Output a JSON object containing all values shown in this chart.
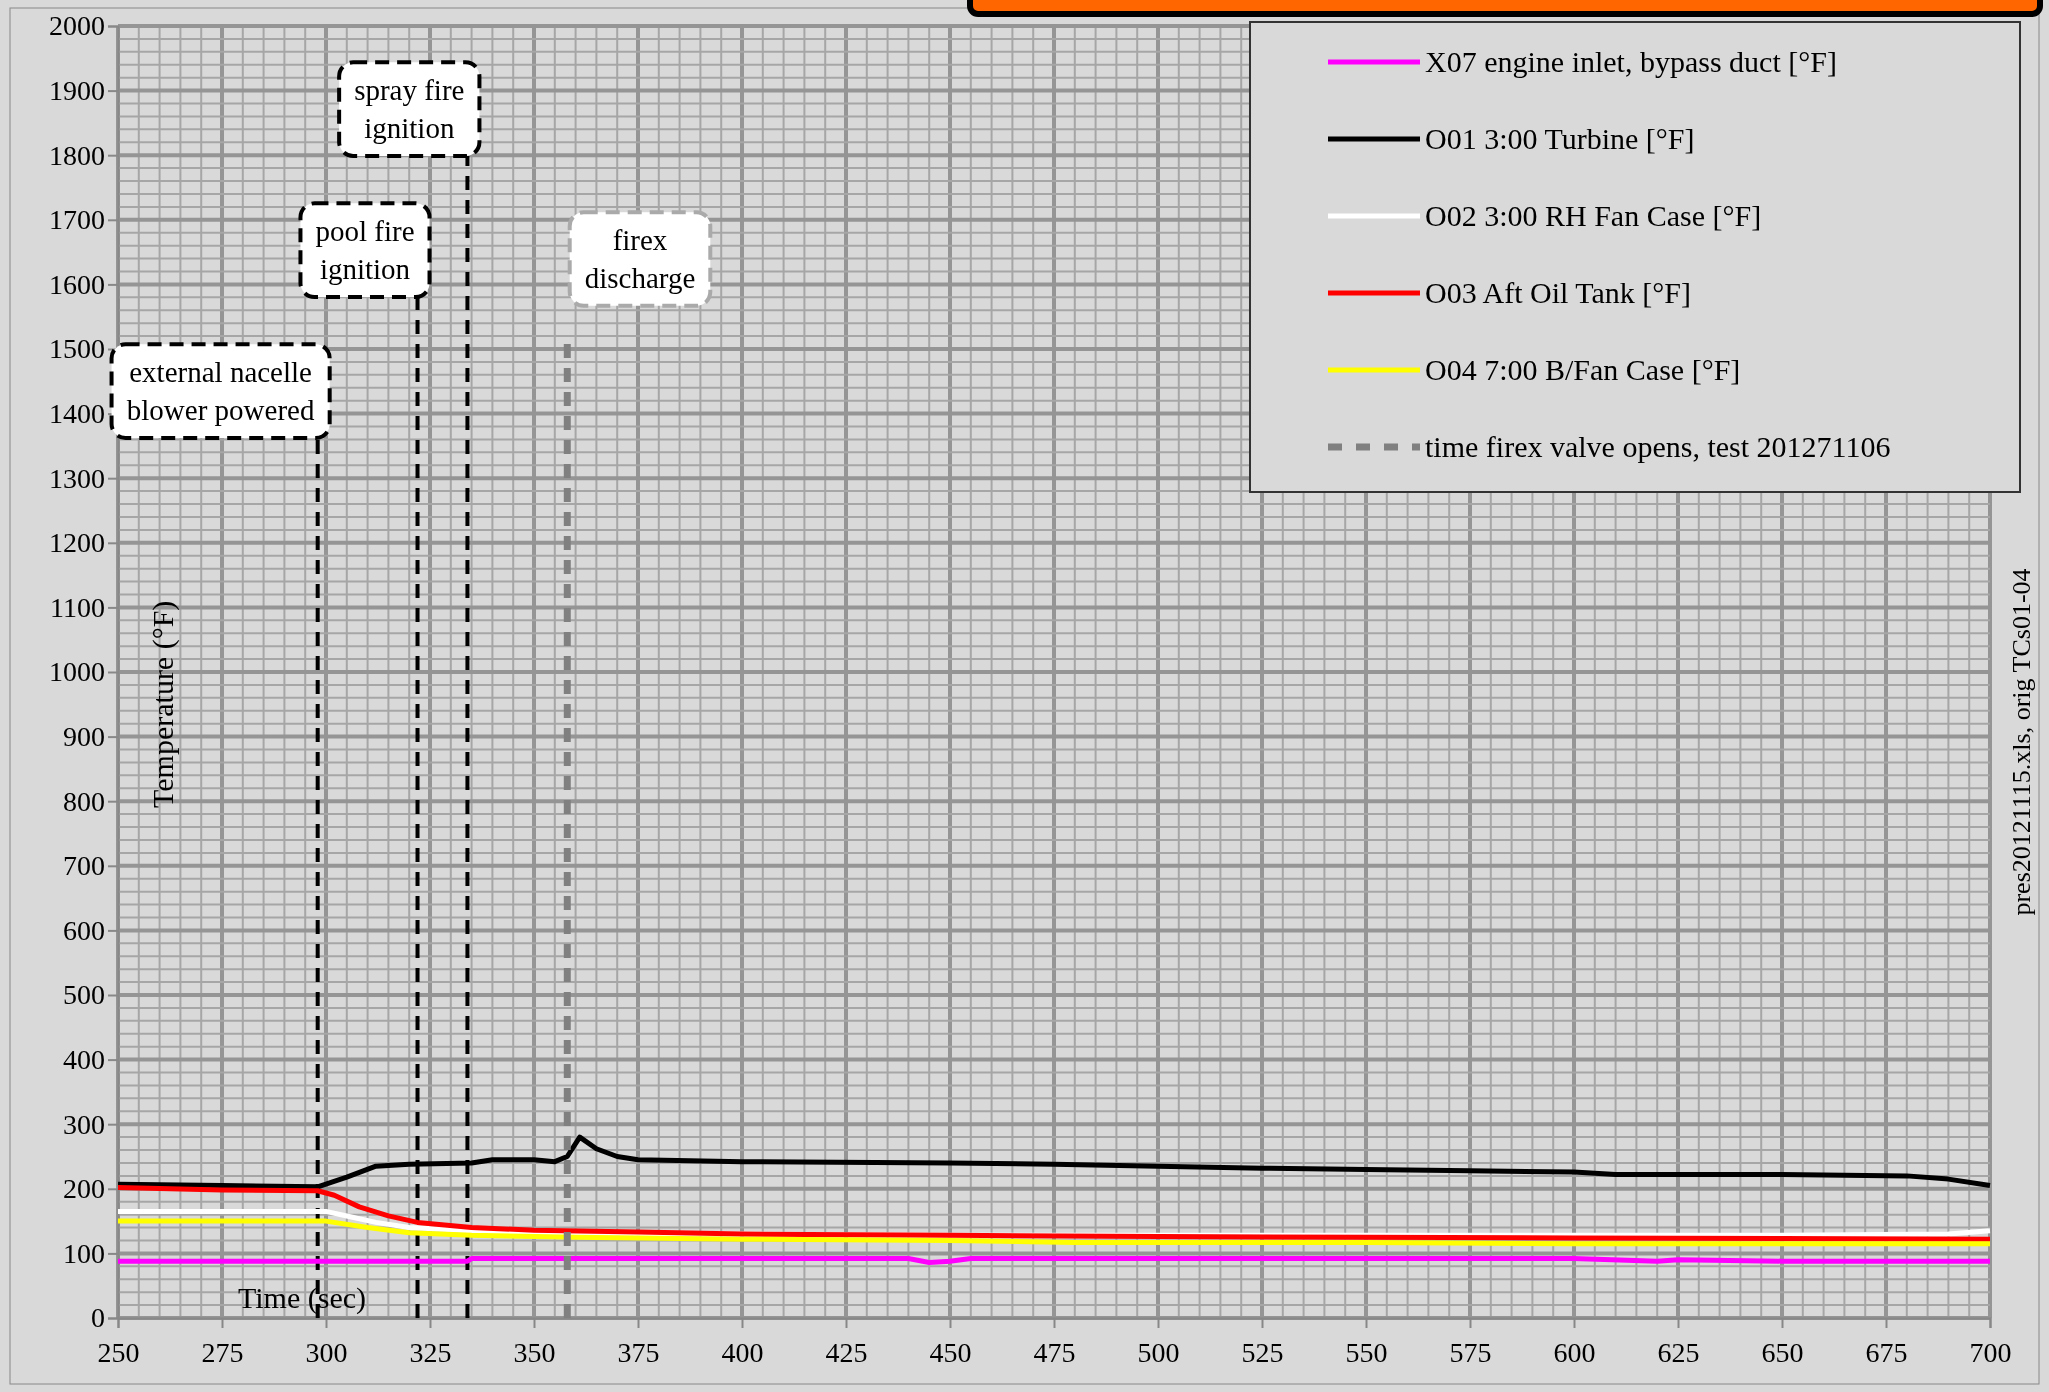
{
  "chart_data": {
    "type": "line",
    "xlabel": "Time (sec)",
    "ylabel": "Temperature (°F)",
    "xlim": [
      250,
      700
    ],
    "xticks": [
      250,
      275,
      300,
      325,
      350,
      375,
      400,
      425,
      450,
      475,
      500,
      525,
      550,
      575,
      600,
      625,
      650,
      675,
      700
    ],
    "ylim": [
      0,
      2000
    ],
    "yticks": [
      0,
      100,
      200,
      300,
      400,
      500,
      600,
      700,
      800,
      900,
      1000,
      1100,
      1200,
      1300,
      1400,
      1500,
      1600,
      1700,
      1800,
      1900,
      2000
    ],
    "grid": true,
    "legend": "top right",
    "line_style": "solid",
    "marker": "none",
    "series": [
      {
        "name": "X07 engine inlet, bypass duct [°F]",
        "color": "#ff00ff",
        "x": [
          250,
          300,
          334,
          335,
          400,
          440,
          445,
          450,
          455,
          500,
          600,
          620,
          625,
          650,
          680,
          700
        ],
        "values": [
          88,
          88,
          88,
          92,
          92,
          92,
          86,
          88,
          92,
          92,
          92,
          88,
          90,
          88,
          88,
          88
        ]
      },
      {
        "name": "O01 3:00 Turbine [°F]",
        "color": "#000000",
        "x": [
          250,
          275,
          298,
          305,
          312,
          320,
          335,
          340,
          350,
          355,
          358,
          361,
          365,
          370,
          375,
          400,
          450,
          475,
          500,
          525,
          550,
          575,
          600,
          610,
          650,
          680,
          690,
          700
        ],
        "values": [
          207,
          205,
          203,
          218,
          235,
          238,
          240,
          245,
          245,
          242,
          250,
          280,
          262,
          250,
          245,
          242,
          240,
          238,
          235,
          232,
          230,
          228,
          226,
          222,
          222,
          220,
          215,
          205
        ]
      },
      {
        "name": "O02 3:00 RH Fan Case [°F]",
        "color": "#ffffff",
        "x": [
          250,
          300,
          305,
          312,
          320,
          335,
          350,
          400,
          450,
          500,
          550,
          600,
          650,
          690,
          700
        ],
        "values": [
          165,
          165,
          158,
          148,
          140,
          135,
          132,
          130,
          128,
          128,
          128,
          128,
          128,
          130,
          135
        ]
      },
      {
        "name": "O03 Aft Oil Tank [°F]",
        "color": "#ff0000",
        "x": [
          250,
          275,
          298,
          302,
          308,
          315,
          322,
          335,
          350,
          375,
          400,
          450,
          500,
          550,
          600,
          650,
          700
        ],
        "values": [
          202,
          198,
          197,
          190,
          172,
          158,
          148,
          140,
          136,
          133,
          130,
          128,
          126,
          125,
          124,
          123,
          122
        ]
      },
      {
        "name": "O04 7:00 B/Fan Case [°F]",
        "color": "#ffff00",
        "x": [
          250,
          295,
          300,
          310,
          320,
          335,
          360,
          400,
          450,
          480,
          550,
          600,
          650,
          700
        ],
        "values": [
          150,
          150,
          150,
          140,
          132,
          128,
          125,
          122,
          120,
          117,
          117,
          115,
          115,
          115
        ]
      },
      {
        "name": "time firex valve opens, test 201271106",
        "color": "#808080",
        "line_style": "dashed",
        "x": [
          358,
          358
        ],
        "values": [
          0,
          1520
        ]
      }
    ],
    "ref_lines": [
      {
        "axis": "x",
        "value": 298,
        "label": "external nacelle blower powered",
        "color": "#000000",
        "line_style": "dashed"
      },
      {
        "axis": "x",
        "value": 322,
        "label": "pool fire ignition",
        "color": "#000000",
        "line_style": "dashed"
      },
      {
        "axis": "x",
        "value": 334,
        "label": "spray fire ignition",
        "color": "#000000",
        "line_style": "dashed"
      }
    ],
    "annotations": [
      "firex discharge",
      "pres20121115.xls, orig TCs01-04"
    ]
  }
}
